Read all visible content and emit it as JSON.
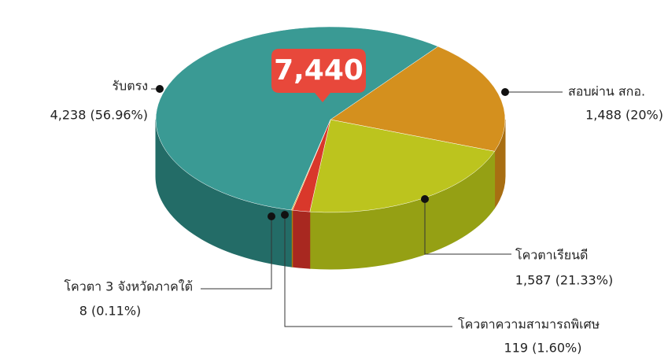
{
  "chart_data": {
    "type": "pie3d",
    "total": {
      "value": 7440,
      "label": "7,440"
    },
    "categories": [
      "สอบผ่าน สกอ.",
      "โควตาเรียนดี",
      "โควตาความสามารถพิเศษ",
      "โควตา 3 จังหวัดภาคใต้",
      "รับตรง"
    ],
    "values": [
      1488,
      1587,
      119,
      8,
      4238
    ],
    "value_labels": [
      "1,488 (20%)",
      "1,587 (21.33%)",
      "119 (1.60%)",
      "8 (0.11%)",
      "4,238 (56.96%)"
    ],
    "colors": [
      "#d4901e",
      "#bcc41e",
      "#d9382b",
      "#d9a21e",
      "#3a9a94"
    ],
    "side_colors": [
      "#a86e12",
      "#95a014",
      "#a82820",
      "#ad7d10",
      "#236c67"
    ]
  }
}
